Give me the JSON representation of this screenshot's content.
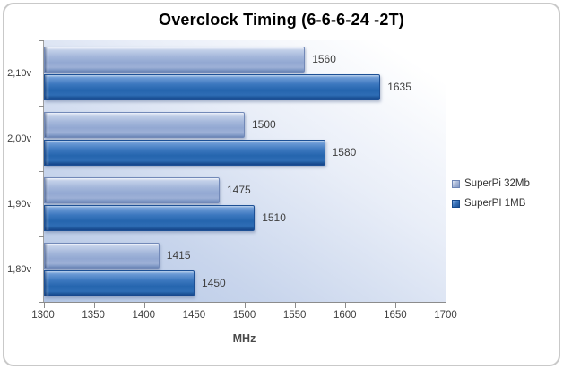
{
  "chart_data": {
    "type": "bar",
    "orientation": "horizontal",
    "title": "Overclock Timing (6-6-6-24 -2T)",
    "xlabel": "MHz",
    "categories": [
      "2,10v",
      "2,00v",
      "1,90v",
      "1,80v"
    ],
    "series": [
      {
        "name": "SuperPi 32Mb",
        "values": [
          1560,
          1500,
          1475,
          1415
        ],
        "color": "#9db1d7"
      },
      {
        "name": "SuperPI 1MB",
        "values": [
          1635,
          1580,
          1510,
          1450
        ],
        "color": "#2e6cb4"
      }
    ],
    "xlim": [
      1300,
      1700
    ],
    "xticks": [
      1300,
      1350,
      1400,
      1450,
      1500,
      1550,
      1600,
      1650,
      1700
    ],
    "grid": false,
    "legend_position": "right",
    "data_labels": true
  },
  "colors": {
    "accent_light_series": "#9db1d7",
    "accent_dark_series": "#2e6cb4",
    "plot_bg_from": "#b4c7e5",
    "plot_bg_to": "#ffffff",
    "axis_line": "#8c8c8c",
    "text": "#3f3f3f",
    "frame_border": "#c9c9c9"
  }
}
